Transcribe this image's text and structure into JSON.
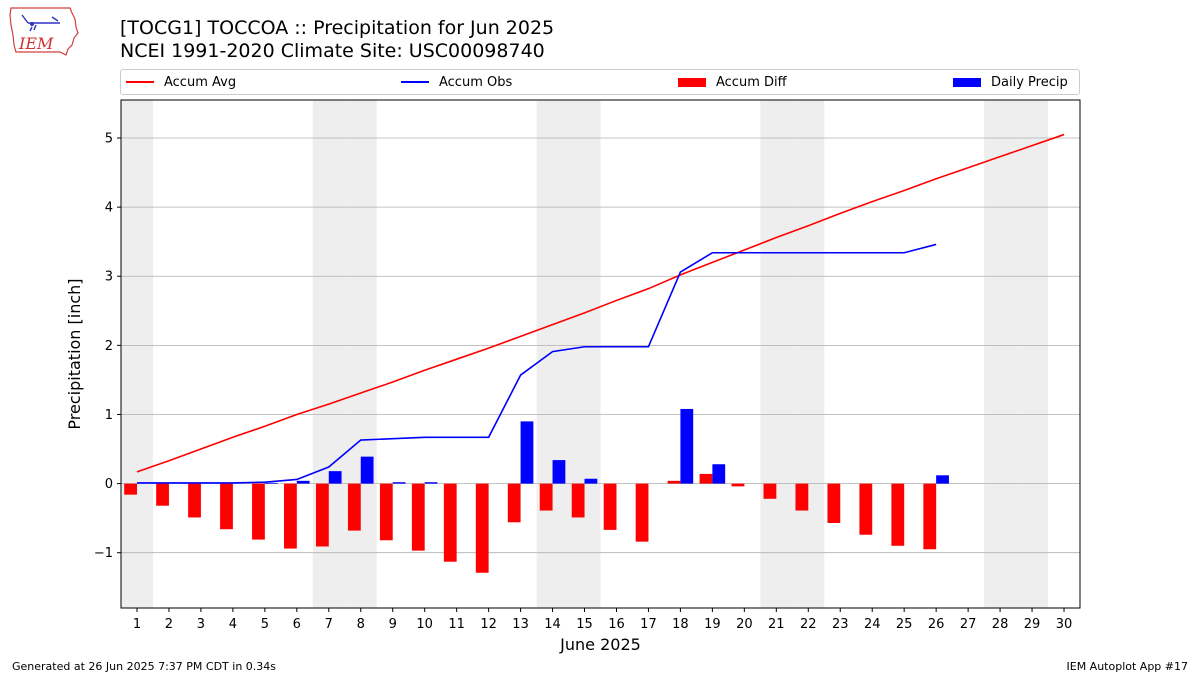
{
  "logo": {
    "text": "IEM",
    "icon": "iowa-state-outline-icon"
  },
  "header": {
    "title_line1": "[TOCG1] TOCCOA :: Precipitation for Jun 2025",
    "title_line2": "NCEI 1991-2020 Climate Site: USC00098740"
  },
  "legend": {
    "accum_avg": "Accum Avg",
    "accum_obs": "Accum Obs",
    "accum_diff": "Accum Diff",
    "daily_precip": "Daily Precip"
  },
  "colors": {
    "avg": "#ff0000",
    "obs": "#0000ff",
    "diff": "#ff0000",
    "daily": "#0000ff",
    "weekend_shade": "#eeeeee",
    "grid": "#b0b0b0"
  },
  "footer": {
    "left": "Generated at 26 Jun 2025 7:37 PM CDT in 0.34s",
    "right": "IEM Autoplot App #17"
  },
  "chart_data": {
    "type": "bar",
    "xlabel": "June 2025",
    "ylabel": "Precipitation [inch]",
    "xlim": [
      0.5,
      30.5
    ],
    "ylim": [
      -1.8,
      5.55
    ],
    "yticks": [
      -1,
      0,
      1,
      2,
      3,
      4,
      5
    ],
    "ytick_labels": [
      "−1",
      "0",
      "1",
      "2",
      "3",
      "4",
      "5"
    ],
    "grid": "horizontal",
    "legend_position": "top",
    "days": [
      1,
      2,
      3,
      4,
      5,
      6,
      7,
      8,
      9,
      10,
      11,
      12,
      13,
      14,
      15,
      16,
      17,
      18,
      19,
      20,
      21,
      22,
      23,
      24,
      25,
      26,
      27,
      28,
      29,
      30
    ],
    "shaded_days": [
      1,
      7,
      8,
      14,
      15,
      21,
      22,
      28,
      29
    ],
    "series": [
      {
        "name": "Accum Avg",
        "kind": "line",
        "values": [
          0.17,
          0.33,
          0.5,
          0.67,
          0.83,
          1.0,
          1.15,
          1.31,
          1.47,
          1.64,
          1.8,
          1.96,
          2.13,
          2.3,
          2.47,
          2.65,
          2.82,
          3.02,
          3.2,
          3.38,
          3.56,
          3.73,
          3.91,
          4.08,
          4.24,
          4.41,
          4.57,
          4.73,
          4.89,
          5.05
        ]
      },
      {
        "name": "Accum Obs",
        "kind": "line",
        "values": [
          0.01,
          0.01,
          0.01,
          0.01,
          0.02,
          0.06,
          0.24,
          0.63,
          0.65,
          0.67,
          0.67,
          0.67,
          1.57,
          1.91,
          1.98,
          1.98,
          1.98,
          3.06,
          3.34,
          3.34,
          3.34,
          3.34,
          3.34,
          3.34,
          3.34,
          3.46
        ]
      },
      {
        "name": "Accum Diff",
        "kind": "bar",
        "values": [
          -0.16,
          -0.32,
          -0.49,
          -0.66,
          -0.81,
          -0.94,
          -0.91,
          -0.68,
          -0.82,
          -0.97,
          -1.13,
          -1.29,
          -0.56,
          -0.39,
          -0.49,
          -0.67,
          -0.84,
          0.04,
          0.14,
          -0.04,
          -0.22,
          -0.39,
          -0.57,
          -0.74,
          -0.9,
          -0.95
        ]
      },
      {
        "name": "Daily Precip",
        "kind": "bar",
        "values": [
          0,
          0,
          0,
          0,
          0.01,
          0.04,
          0.18,
          0.39,
          0.02,
          0.02,
          0,
          0,
          0.9,
          0.34,
          0.07,
          0,
          0,
          1.08,
          0.28,
          0,
          0,
          0,
          0,
          0,
          0,
          0.12
        ]
      }
    ]
  }
}
